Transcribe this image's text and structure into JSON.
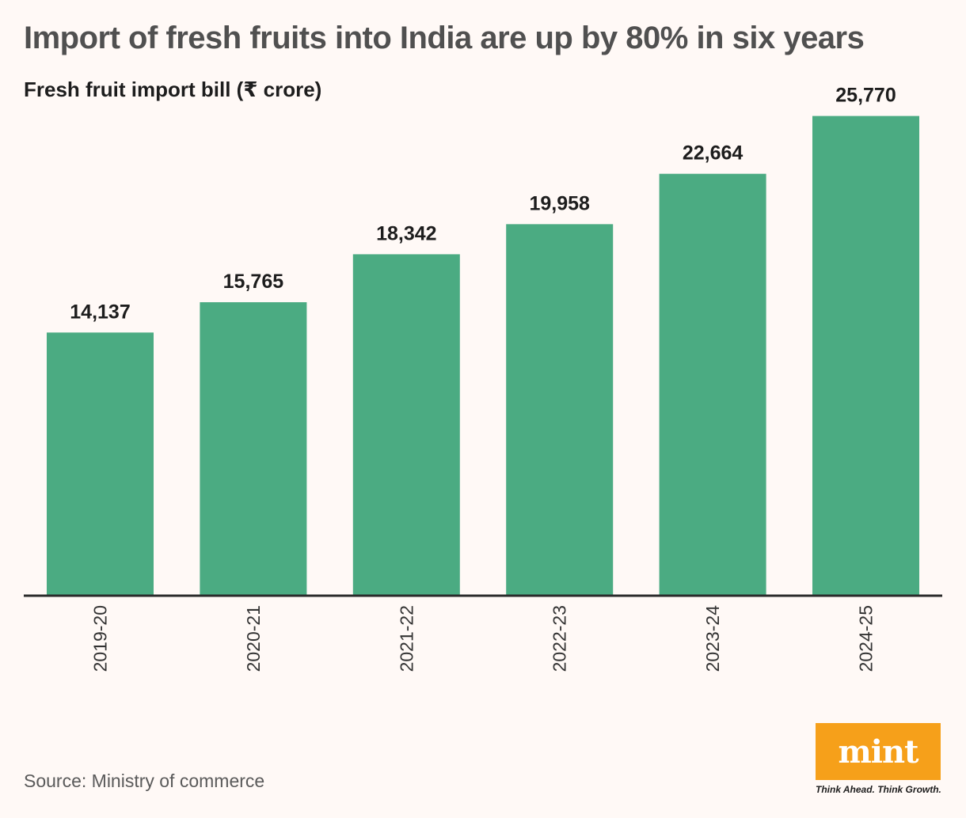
{
  "title": "Import of fresh fruits into India are up by 80% in six years",
  "subtitle": "Fresh fruit import bill (₹ crore)",
  "source": "Source: Ministry of commerce",
  "brand": {
    "logo_text": "mint",
    "tagline": "Think Ahead. Think Growth.",
    "logo_color": "#f6a01a"
  },
  "colors": {
    "bar": "#4bab82",
    "axis": "#2a2a2a",
    "background": "#fff9f6"
  },
  "chart_data": {
    "type": "bar",
    "title": "Import of fresh fruits into India are up by 80% in six years",
    "ylabel": "Fresh fruit import bill (₹ crore)",
    "xlabel": "",
    "categories": [
      "2019-20",
      "2020-21",
      "2021-22",
      "2022-23",
      "2023-24",
      "2024-25"
    ],
    "values": [
      14137,
      15765,
      18342,
      19958,
      22664,
      25770
    ],
    "value_labels": [
      "14,137",
      "15,765",
      "18,342",
      "19,958",
      "22,664",
      "25,770"
    ],
    "ylim": [
      0,
      32000
    ],
    "grid": false
  }
}
